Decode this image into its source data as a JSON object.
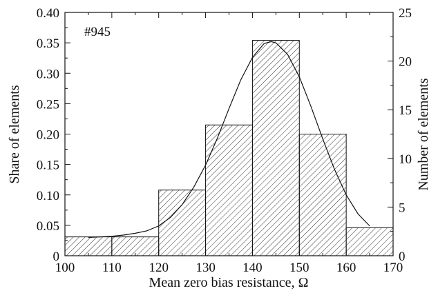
{
  "chart_data": {
    "type": "bar",
    "annotation": "#945",
    "xlabel": "Mean zero bias resistance, Ω",
    "ylabel_left": "Share of elements",
    "ylabel_right": "Number of elements",
    "xlim": [
      100,
      170
    ],
    "ylim_left": [
      0,
      0.4
    ],
    "ylim_right": [
      0,
      25
    ],
    "x_ticks": [
      "100",
      "110",
      "120",
      "130",
      "140",
      "150",
      "160",
      "170"
    ],
    "y_ticks_left": [
      "0",
      "0.05",
      "0.10",
      "0.15",
      "0.20",
      "0.25",
      "0.30",
      "0.35",
      "0.40"
    ],
    "y_ticks_right": [
      "0",
      "5",
      "10",
      "15",
      "20",
      "25"
    ],
    "bins": [
      {
        "x0": 100,
        "x1": 110,
        "share": 0.031,
        "count": 2
      },
      {
        "x0": 110,
        "x1": 120,
        "share": 0.031,
        "count": 2
      },
      {
        "x0": 120,
        "x1": 130,
        "share": 0.108,
        "count": 7
      },
      {
        "x0": 130,
        "x1": 140,
        "share": 0.215,
        "count": 14
      },
      {
        "x0": 140,
        "x1": 150,
        "share": 0.354,
        "count": 23
      },
      {
        "x0": 150,
        "x1": 160,
        "share": 0.2,
        "count": 13
      },
      {
        "x0": 160,
        "x1": 170,
        "share": 0.046,
        "count": 3
      }
    ],
    "fit_curve": {
      "type": "gaussian",
      "x": [
        105,
        107.5,
        110,
        112.5,
        115,
        117.5,
        120,
        122.5,
        125,
        127.5,
        130,
        132.5,
        135,
        137.5,
        140,
        142.5,
        144,
        145,
        147.5,
        150,
        152.5,
        155,
        157.5,
        160,
        162.5,
        165
      ],
      "y": [
        0.03,
        0.031,
        0.032,
        0.034,
        0.037,
        0.041,
        0.049,
        0.063,
        0.084,
        0.113,
        0.149,
        0.193,
        0.242,
        0.289,
        0.326,
        0.349,
        0.352,
        0.35,
        0.331,
        0.294,
        0.245,
        0.192,
        0.142,
        0.1,
        0.069,
        0.049
      ]
    },
    "grid": false
  }
}
